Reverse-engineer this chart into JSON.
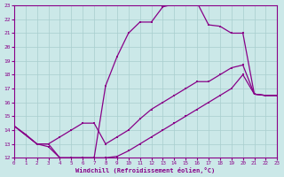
{
  "bg_color": "#cbe8e8",
  "line_color": "#880088",
  "grid_color": "#a8cece",
  "xlim": [
    0,
    23
  ],
  "ylim": [
    12,
    23
  ],
  "xticks": [
    0,
    1,
    2,
    3,
    4,
    5,
    6,
    7,
    8,
    9,
    10,
    11,
    12,
    13,
    14,
    15,
    16,
    17,
    18,
    19,
    20,
    21,
    22,
    23
  ],
  "yticks": [
    12,
    13,
    14,
    15,
    16,
    17,
    18,
    19,
    20,
    21,
    22,
    23
  ],
  "xlabel": "Windchill (Refroidissement éolien,°C)",
  "lines": [
    {
      "x": [
        0,
        1,
        2,
        3,
        4,
        5,
        6,
        7,
        8,
        9,
        10,
        11,
        12,
        13,
        14,
        15,
        16,
        17,
        18,
        19,
        20,
        21,
        22,
        23
      ],
      "y": [
        14.3,
        13.7,
        13.0,
        12.8,
        12.0,
        12.0,
        12.0,
        12.0,
        17.2,
        19.3,
        21.0,
        21.8,
        21.8,
        22.9,
        23.1,
        23.2,
        23.2,
        21.6,
        21.5,
        21.0,
        21.0,
        16.6,
        16.5,
        16.5
      ]
    },
    {
      "x": [
        0,
        2,
        3,
        4,
        5,
        6,
        7,
        8,
        9,
        10,
        11,
        12,
        13,
        14,
        15,
        16,
        17,
        18,
        19,
        20,
        21,
        22,
        23
      ],
      "y": [
        14.3,
        13.0,
        13.0,
        13.5,
        14.0,
        14.5,
        14.5,
        13.0,
        13.5,
        14.0,
        14.8,
        15.5,
        16.0,
        16.5,
        17.0,
        17.5,
        17.5,
        18.0,
        18.5,
        18.7,
        16.6,
        16.5,
        16.5
      ]
    },
    {
      "x": [
        0,
        2,
        3,
        4,
        5,
        6,
        7,
        8,
        9,
        10,
        11,
        12,
        13,
        14,
        15,
        16,
        17,
        18,
        19,
        20,
        21,
        22,
        23
      ],
      "y": [
        14.3,
        13.0,
        13.0,
        12.0,
        12.0,
        12.0,
        12.0,
        12.0,
        12.1,
        12.5,
        13.0,
        13.5,
        14.0,
        14.5,
        15.0,
        15.5,
        16.0,
        16.5,
        17.0,
        18.0,
        16.6,
        16.5,
        16.5
      ]
    }
  ]
}
